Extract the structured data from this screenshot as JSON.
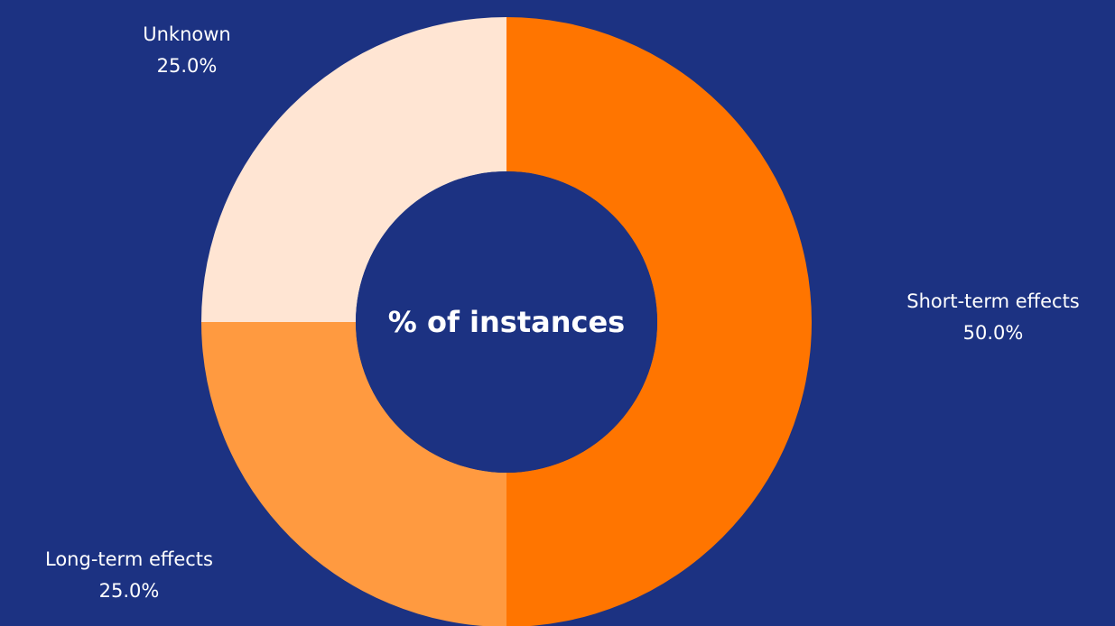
{
  "chart_data": {
    "type": "pie",
    "title": "% of instances",
    "categories": [
      "Short-term effects",
      "Long-term effects",
      "Unknown"
    ],
    "values": [
      50.0,
      25.0,
      25.0
    ],
    "value_labels": [
      "50.0%",
      "25.0%",
      "25.0%"
    ],
    "colors": [
      "#ff7500",
      "#ff9a40",
      "#ffe5d3"
    ],
    "background_color": "#1c3282",
    "start_angle": "12 o'clock",
    "direction": "clockwise",
    "donut": true,
    "legend": "none"
  }
}
